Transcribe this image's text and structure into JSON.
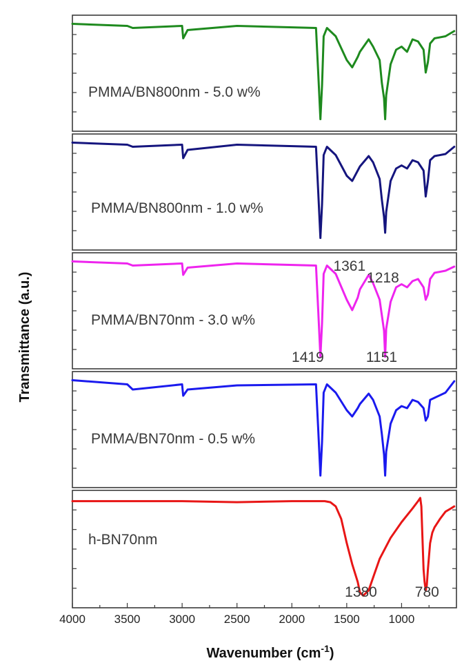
{
  "chart_data": {
    "type": "line",
    "xlabel": "Wavenumber (cm",
    "xlabel_superscript": "-1",
    "xlabel_suffix": ")",
    "ylabel": "Transmittance (a.u.)",
    "xlim": [
      4000,
      500
    ],
    "x_ticks": [
      "4000",
      "3500",
      "3000",
      "2500",
      "2000",
      "1500",
      "1000"
    ],
    "x_tick_values": [
      4000,
      3500,
      3000,
      2500,
      2000,
      1500,
      1000
    ],
    "stacked_panels": true,
    "grid": false,
    "series": [
      {
        "name": "PMMA/BN800nm - 5.0 w%",
        "color": "#1e8a1e",
        "x": [
          4000,
          3500,
          3450,
          3000,
          2990,
          2950,
          2500,
          1780,
          1760,
          1740,
          1725,
          1710,
          1680,
          1600,
          1500,
          1450,
          1400,
          1380,
          1300,
          1260,
          1200,
          1180,
          1160,
          1150,
          1140,
          1100,
          1050,
          1000,
          950,
          900,
          850,
          800,
          780,
          760,
          740,
          700,
          600,
          520
        ],
        "y": [
          0.97,
          0.95,
          0.93,
          0.95,
          0.83,
          0.91,
          0.95,
          0.93,
          0.5,
          0.05,
          0.38,
          0.85,
          0.93,
          0.85,
          0.62,
          0.55,
          0.65,
          0.7,
          0.82,
          0.75,
          0.62,
          0.4,
          0.25,
          0.05,
          0.28,
          0.58,
          0.72,
          0.75,
          0.7,
          0.82,
          0.8,
          0.72,
          0.5,
          0.6,
          0.78,
          0.83,
          0.85,
          0.9
        ]
      },
      {
        "name": "PMMA/BN800nm - 1.0 w%",
        "color": "#15157e",
        "x": [
          4000,
          3500,
          3450,
          3000,
          2990,
          2950,
          2500,
          1780,
          1760,
          1740,
          1725,
          1710,
          1680,
          1600,
          1500,
          1450,
          1400,
          1380,
          1300,
          1260,
          1200,
          1180,
          1160,
          1150,
          1140,
          1100,
          1050,
          1000,
          950,
          900,
          850,
          800,
          780,
          760,
          740,
          700,
          600,
          520
        ],
        "y": [
          0.97,
          0.95,
          0.93,
          0.95,
          0.82,
          0.9,
          0.95,
          0.93,
          0.5,
          0.05,
          0.38,
          0.85,
          0.93,
          0.85,
          0.65,
          0.6,
          0.7,
          0.74,
          0.84,
          0.78,
          0.62,
          0.42,
          0.25,
          0.1,
          0.3,
          0.6,
          0.72,
          0.75,
          0.72,
          0.8,
          0.78,
          0.7,
          0.45,
          0.6,
          0.8,
          0.84,
          0.86,
          0.93
        ]
      },
      {
        "name": "PMMA/BN70nm - 3.0 w%",
        "color": "#ee24ee",
        "x": [
          4000,
          3500,
          3450,
          3000,
          2990,
          2950,
          2500,
          1780,
          1760,
          1740,
          1725,
          1710,
          1680,
          1600,
          1500,
          1450,
          1400,
          1380,
          1300,
          1260,
          1200,
          1180,
          1160,
          1150,
          1140,
          1100,
          1050,
          1000,
          950,
          900,
          850,
          800,
          780,
          760,
          740,
          700,
          600,
          520
        ],
        "y": [
          0.97,
          0.95,
          0.93,
          0.95,
          0.84,
          0.91,
          0.95,
          0.93,
          0.5,
          0.05,
          0.38,
          0.85,
          0.93,
          0.85,
          0.6,
          0.5,
          0.62,
          0.7,
          0.84,
          0.76,
          0.6,
          0.45,
          0.3,
          0.05,
          0.32,
          0.58,
          0.72,
          0.75,
          0.72,
          0.78,
          0.8,
          0.72,
          0.6,
          0.65,
          0.8,
          0.86,
          0.88,
          0.92
        ]
      },
      {
        "name": "PMMA/BN70nm - 0.5 w%",
        "color": "#1a1aee",
        "x": [
          4000,
          3500,
          3450,
          3000,
          2990,
          2950,
          2500,
          1780,
          1760,
          1740,
          1725,
          1710,
          1680,
          1600,
          1500,
          1450,
          1400,
          1380,
          1300,
          1260,
          1200,
          1180,
          1160,
          1150,
          1140,
          1100,
          1050,
          1000,
          950,
          900,
          850,
          800,
          780,
          760,
          740,
          700,
          600,
          520
        ],
        "y": [
          0.97,
          0.93,
          0.88,
          0.93,
          0.82,
          0.88,
          0.92,
          0.93,
          0.5,
          0.05,
          0.38,
          0.85,
          0.93,
          0.85,
          0.68,
          0.62,
          0.7,
          0.74,
          0.84,
          0.78,
          0.62,
          0.45,
          0.25,
          0.05,
          0.28,
          0.55,
          0.68,
          0.72,
          0.7,
          0.78,
          0.76,
          0.7,
          0.58,
          0.62,
          0.78,
          0.8,
          0.85,
          0.96
        ]
      },
      {
        "name": "h-BN70nm",
        "color": "#e81616",
        "x": [
          4000,
          3500,
          3000,
          2500,
          2000,
          1700,
          1650,
          1600,
          1550,
          1500,
          1450,
          1400,
          1380,
          1350,
          1300,
          1250,
          1200,
          1100,
          1000,
          900,
          850,
          830,
          820,
          810,
          800,
          790,
          780,
          770,
          760,
          740,
          720,
          700,
          650,
          600,
          550,
          520
        ],
        "y": [
          0.95,
          0.95,
          0.95,
          0.94,
          0.95,
          0.95,
          0.94,
          0.9,
          0.78,
          0.55,
          0.35,
          0.18,
          0.08,
          0.05,
          0.1,
          0.25,
          0.4,
          0.6,
          0.75,
          0.88,
          0.95,
          0.98,
          0.9,
          0.6,
          0.3,
          0.18,
          0.1,
          0.15,
          0.3,
          0.55,
          0.65,
          0.7,
          0.78,
          0.85,
          0.88,
          0.9
        ]
      }
    ],
    "annotations": [
      {
        "text": "1361",
        "panel": 2,
        "position": "above"
      },
      {
        "text": "1218",
        "panel": 2,
        "position": "above"
      },
      {
        "text": "1419",
        "panel": 2,
        "position": "below"
      },
      {
        "text": "1151",
        "panel": 2,
        "position": "below"
      },
      {
        "text": "1380",
        "panel": 4,
        "position": "below"
      },
      {
        "text": "780",
        "panel": 4,
        "position": "below"
      }
    ]
  }
}
